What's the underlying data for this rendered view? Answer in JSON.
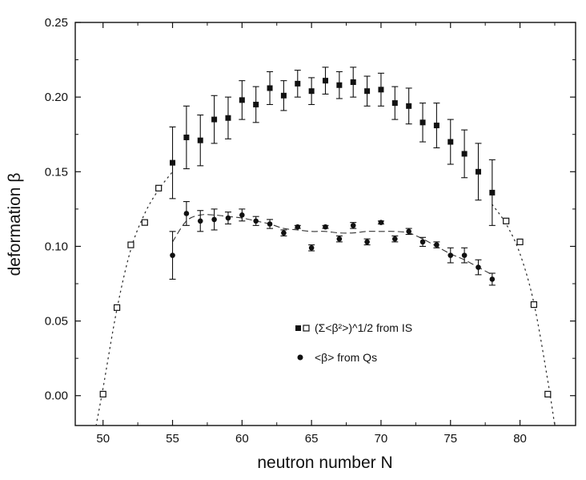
{
  "chart_data": {
    "type": "scatter",
    "xlabel": "neutron number N",
    "ylabel": "deformation β",
    "xlim": [
      48,
      84
    ],
    "ylim": [
      -0.02,
      0.25
    ],
    "xticks": [
      "50",
      "55",
      "60",
      "65",
      "70",
      "75",
      "80"
    ],
    "yticks": [
      "0.00",
      "0.05",
      "0.10",
      "0.15",
      "0.20",
      "0.25"
    ],
    "grid": false,
    "legend_position": "lower-center",
    "series": [
      {
        "name": "(Σ<β²>)^1/2 from IS",
        "marker": "filled-square",
        "x": [
          55,
          56,
          57,
          58,
          59,
          60,
          61,
          62,
          63,
          64,
          65,
          66,
          67,
          68,
          69,
          70,
          71,
          72,
          73,
          74,
          75,
          76,
          77,
          78
        ],
        "y": [
          0.156,
          0.173,
          0.171,
          0.185,
          0.186,
          0.198,
          0.195,
          0.206,
          0.201,
          0.209,
          0.204,
          0.211,
          0.208,
          0.21,
          0.204,
          0.205,
          0.196,
          0.194,
          0.183,
          0.181,
          0.17,
          0.162,
          0.15,
          0.136
        ],
        "yerr": [
          0.024,
          0.021,
          0.017,
          0.016,
          0.014,
          0.013,
          0.012,
          0.011,
          0.01,
          0.009,
          0.009,
          0.009,
          0.009,
          0.01,
          0.01,
          0.011,
          0.011,
          0.012,
          0.013,
          0.015,
          0.015,
          0.016,
          0.019,
          0.022
        ]
      },
      {
        "name": "(Σ<β²>)^1/2 from IS",
        "marker": "open-square",
        "x": [
          50,
          51,
          52,
          53,
          54,
          79,
          80,
          81,
          82
        ],
        "y": [
          0.001,
          0.059,
          0.101,
          0.116,
          0.139,
          0.117,
          0.103,
          0.061,
          0.001
        ]
      },
      {
        "name": "<β> from Qs",
        "marker": "filled-circle",
        "x": [
          55,
          56,
          57,
          58,
          59,
          60,
          61,
          62,
          63,
          64,
          65,
          66,
          67,
          68,
          69,
          70,
          71,
          72,
          73,
          74,
          75,
          76,
          77,
          78
        ],
        "y": [
          0.094,
          0.122,
          0.117,
          0.118,
          0.119,
          0.121,
          0.117,
          0.115,
          0.109,
          0.113,
          0.099,
          0.113,
          0.105,
          0.114,
          0.103,
          0.116,
          0.105,
          0.11,
          0.103,
          0.101,
          0.094,
          0.094,
          0.086,
          0.078
        ],
        "yerr": [
          0.016,
          0.008,
          0.007,
          0.007,
          0.004,
          0.004,
          0.003,
          0.003,
          0.002,
          0.001,
          0.002,
          0.001,
          0.002,
          0.002,
          0.002,
          0.001,
          0.002,
          0.002,
          0.003,
          0.002,
          0.005,
          0.005,
          0.005,
          0.004
        ]
      }
    ],
    "fit_curves": [
      {
        "style": "dashed",
        "x": [
          55,
          56,
          57,
          58,
          59,
          60,
          61,
          62,
          63,
          64,
          65,
          66,
          67,
          68,
          69,
          70,
          71,
          72,
          73,
          74,
          75,
          76,
          77,
          78
        ],
        "y": [
          0.103,
          0.117,
          0.121,
          0.121,
          0.12,
          0.119,
          0.117,
          0.115,
          0.112,
          0.111,
          0.11,
          0.11,
          0.109,
          0.109,
          0.11,
          0.11,
          0.11,
          0.109,
          0.105,
          0.1,
          0.095,
          0.091,
          0.086,
          0.081
        ]
      },
      {
        "style": "dotted",
        "x": [
          49.5,
          50,
          51,
          52,
          53,
          54,
          55
        ],
        "y": [
          -0.02,
          0.005,
          0.058,
          0.098,
          0.122,
          0.138,
          0.15
        ]
      },
      {
        "style": "dotted",
        "x": [
          78,
          79,
          80,
          81,
          82,
          82.5
        ],
        "y": [
          0.128,
          0.115,
          0.095,
          0.062,
          0.01,
          -0.02
        ]
      }
    ],
    "legend": [
      {
        "label": "(Σ<β²>)^1/2 from IS",
        "markers": [
          "filled-square",
          "open-square"
        ]
      },
      {
        "label": "<β> from Qs",
        "markers": [
          "filled-circle"
        ]
      }
    ]
  }
}
